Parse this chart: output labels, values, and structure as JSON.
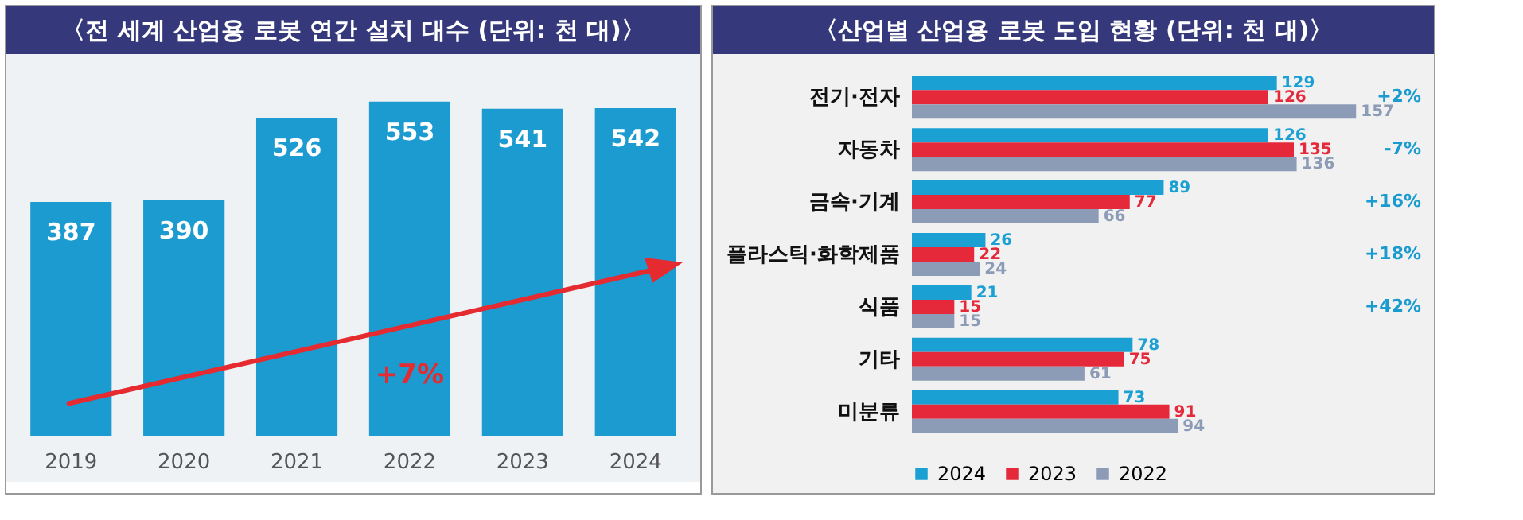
{
  "chart_data": [
    {
      "type": "bar",
      "title": "〈전 세계 산업용 로봇 연간 설치 대수 (단위: 천 대)〉",
      "categories": [
        "2019",
        "2020",
        "2021",
        "2022",
        "2023",
        "2024"
      ],
      "values": [
        387,
        390,
        526,
        553,
        541,
        542
      ],
      "color": "#1b9bd0",
      "data_labels": true,
      "annotations": [
        "+7%"
      ]
    },
    {
      "type": "bar",
      "orientation": "horizontal",
      "title": "〈산업별 산업용 로봇 도입 현황 (단위: 천 대)〉",
      "categories": [
        "전기·전자",
        "자동차",
        "금속·기계",
        "플라스틱·화학제품",
        "식품",
        "기타",
        "미분류"
      ],
      "series": [
        {
          "name": "2024",
          "color": "#1aa0d2",
          "values": [
            129,
            126,
            89,
            26,
            21,
            78,
            73
          ]
        },
        {
          "name": "2023",
          "color": "#e5283a",
          "values": [
            126,
            135,
            77,
            22,
            15,
            75,
            91
          ]
        },
        {
          "name": "2022",
          "color": "#8c9bb6",
          "values": [
            157,
            136,
            66,
            24,
            15,
            61,
            94
          ]
        }
      ],
      "data_labels": true,
      "legend": "bottom",
      "annotations": [
        "+2%",
        "-7%",
        "+16%",
        "+18%",
        "+42%"
      ]
    }
  ]
}
